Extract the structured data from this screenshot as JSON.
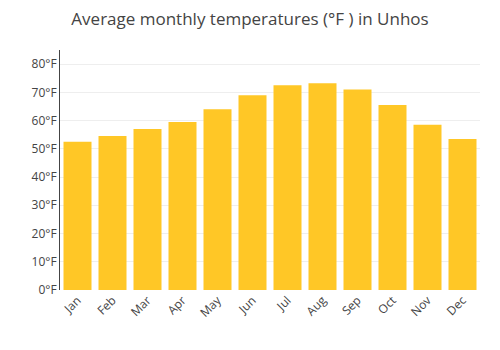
{
  "chart_data": {
    "type": "bar",
    "title": "Average monthly temperatures (°F ) in Unhos",
    "categories": [
      "Jan",
      "Feb",
      "Mar",
      "Apr",
      "May",
      "Jun",
      "Jul",
      "Aug",
      "Sep",
      "Oct",
      "Nov",
      "Dec"
    ],
    "values": [
      52.5,
      54.5,
      57.0,
      59.5,
      64.0,
      69.0,
      72.5,
      73.2,
      71.0,
      65.5,
      58.5,
      53.5
    ],
    "color": "#FFC726",
    "ylim": [
      0,
      85
    ],
    "yticks": [
      {
        "value": 0,
        "label": "0°F"
      },
      {
        "value": 10,
        "label": "10°F"
      },
      {
        "value": 20,
        "label": "20°F"
      },
      {
        "value": 30,
        "label": "30°F"
      },
      {
        "value": 40,
        "label": "40°F"
      },
      {
        "value": 50,
        "label": "50°F"
      },
      {
        "value": 60,
        "label": "60°F"
      },
      {
        "value": 70,
        "label": "70°F"
      },
      {
        "value": 80,
        "label": "80°F"
      }
    ],
    "grid": true
  }
}
